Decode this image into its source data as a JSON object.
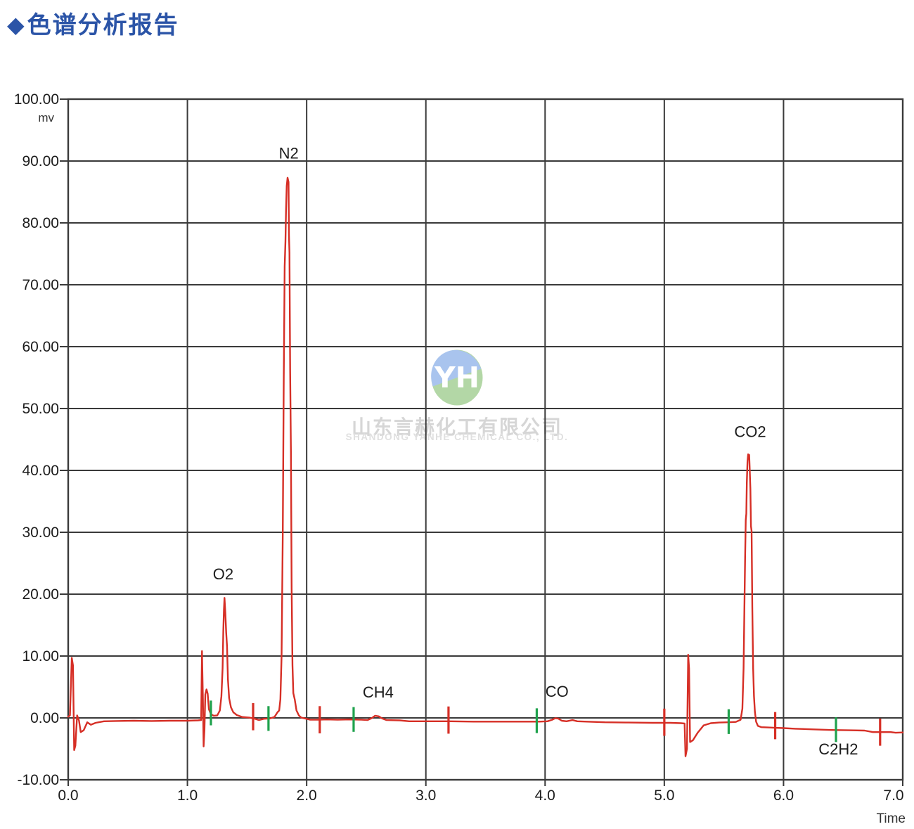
{
  "title": {
    "diamond": "◆",
    "text": "色谱分析报告"
  },
  "watermark": {
    "logo_text": "YH",
    "cn": "山东言赫化工有限公司",
    "en": "SHANDONG YANHE CHEMICAL CO., LTD."
  },
  "colors": {
    "title_blue": "#2b54a7",
    "trace_red": "#d62f26",
    "marker_green": "#1fa24d",
    "marker_red": "#d62f26",
    "grid": "#3a3a3a",
    "text": "#1b1b1b",
    "logo_blue": "#a9c4ee",
    "logo_green": "#b3d7a6"
  },
  "chart_data": {
    "type": "line",
    "title": "",
    "xlabel": "Time",
    "ylabel": "mv",
    "xlim": [
      0,
      7
    ],
    "ylim": [
      -10,
      100
    ],
    "grid": true,
    "x_ticks": [
      {
        "v": 0,
        "label": "0.0"
      },
      {
        "v": 1,
        "label": "1.0"
      },
      {
        "v": 2,
        "label": "2.0"
      },
      {
        "v": 3,
        "label": "3.0"
      },
      {
        "v": 4,
        "label": "4.0"
      },
      {
        "v": 5,
        "label": "5.0"
      },
      {
        "v": 6,
        "label": "6.0"
      },
      {
        "v": 7,
        "label": "7.0"
      }
    ],
    "y_ticks": [
      {
        "v": 100,
        "label": "100.00"
      },
      {
        "v": 90,
        "label": "90.00"
      },
      {
        "v": 80,
        "label": "80.00"
      },
      {
        "v": 70,
        "label": "70.00"
      },
      {
        "v": 60,
        "label": "60.00"
      },
      {
        "v": 50,
        "label": "50.00"
      },
      {
        "v": 40,
        "label": "40.00"
      },
      {
        "v": 30,
        "label": "30.00"
      },
      {
        "v": 20,
        "label": "20.00"
      },
      {
        "v": 10,
        "label": "10.00"
      },
      {
        "v": 0,
        "label": "0.00"
      },
      {
        "v": -10,
        "label": "-10.00"
      }
    ],
    "peaks": [
      {
        "label": "O2",
        "t": 1.3,
        "mv": 23.2
      },
      {
        "label": "N2",
        "t": 1.85,
        "mv": 91.2
      },
      {
        "label": "CH4",
        "t": 2.6,
        "mv": 4.1
      },
      {
        "label": "CO",
        "t": 4.1,
        "mv": 4.2
      },
      {
        "label": "CO2",
        "t": 5.72,
        "mv": 46.2
      },
      {
        "label": "C2H2",
        "t": 6.46,
        "mv": -5.1
      }
    ],
    "peak_start_ticks_green": [
      {
        "t": 1.197,
        "c": 0.8
      },
      {
        "t": 1.68,
        "c": -0.1
      },
      {
        "t": 2.394,
        "c": -0.25
      },
      {
        "t": 3.93,
        "c": -0.45
      },
      {
        "t": 5.54,
        "c": -0.6
      },
      {
        "t": 6.44,
        "c": -1.9
      }
    ],
    "peak_end_ticks_red": [
      {
        "t": 1.551,
        "c": 0.2
      },
      {
        "t": 2.11,
        "c": -0.3
      },
      {
        "t": 3.19,
        "c": -0.35
      },
      {
        "t": 5.0,
        "c": -0.7
      },
      {
        "t": 5.93,
        "c": -1.25
      },
      {
        "t": 6.81,
        "c": -2.3
      }
    ],
    "series": [
      {
        "name": "signal",
        "points": [
          [
            0.0,
            0.2
          ],
          [
            0.015,
            0.4
          ],
          [
            0.03,
            9.7
          ],
          [
            0.04,
            8.5
          ],
          [
            0.05,
            -5.2
          ],
          [
            0.06,
            -4.5
          ],
          [
            0.075,
            0.4
          ],
          [
            0.09,
            -0.4
          ],
          [
            0.105,
            -2.3
          ],
          [
            0.13,
            -2.0
          ],
          [
            0.16,
            -0.7
          ],
          [
            0.19,
            -1.1
          ],
          [
            0.23,
            -0.8
          ],
          [
            0.3,
            -0.55
          ],
          [
            0.4,
            -0.5
          ],
          [
            0.55,
            -0.45
          ],
          [
            0.7,
            -0.5
          ],
          [
            0.85,
            -0.45
          ],
          [
            1.0,
            -0.45
          ],
          [
            1.09,
            -0.4
          ],
          [
            1.115,
            -0.35
          ],
          [
            1.122,
            10.8
          ],
          [
            1.13,
            3.0
          ],
          [
            1.136,
            -4.6
          ],
          [
            1.143,
            -2.0
          ],
          [
            1.15,
            3.8
          ],
          [
            1.16,
            4.6
          ],
          [
            1.17,
            3.9
          ],
          [
            1.18,
            1.4
          ],
          [
            1.197,
            0.6
          ],
          [
            1.22,
            0.35
          ],
          [
            1.25,
            0.4
          ],
          [
            1.272,
            1.2
          ],
          [
            1.285,
            3.5
          ],
          [
            1.295,
            8.0
          ],
          [
            1.301,
            14.0
          ],
          [
            1.306,
            17.5
          ],
          [
            1.311,
            19.4
          ],
          [
            1.318,
            17.0
          ],
          [
            1.325,
            13.8
          ],
          [
            1.332,
            11.6
          ],
          [
            1.34,
            6.2
          ],
          [
            1.35,
            3.2
          ],
          [
            1.365,
            1.7
          ],
          [
            1.385,
            0.9
          ],
          [
            1.415,
            0.45
          ],
          [
            1.46,
            0.15
          ],
          [
            1.52,
            0.05
          ],
          [
            1.56,
            -0.1
          ],
          [
            1.6,
            -0.35
          ],
          [
            1.64,
            -0.15
          ],
          [
            1.69,
            -0.1
          ],
          [
            1.73,
            0.15
          ],
          [
            1.755,
            0.9
          ],
          [
            1.77,
            1.2
          ],
          [
            1.78,
            3.0
          ],
          [
            1.79,
            10.0
          ],
          [
            1.8,
            30.0
          ],
          [
            1.808,
            55.0
          ],
          [
            1.816,
            73.0
          ],
          [
            1.822,
            77.0
          ],
          [
            1.827,
            82.0
          ],
          [
            1.833,
            86.0
          ],
          [
            1.84,
            87.3
          ],
          [
            1.848,
            86.6
          ],
          [
            1.852,
            78.0
          ],
          [
            1.856,
            75.2
          ],
          [
            1.862,
            56.0
          ],
          [
            1.868,
            43.0
          ],
          [
            1.874,
            21.0
          ],
          [
            1.881,
            8.5
          ],
          [
            1.888,
            4.0
          ],
          [
            1.9,
            3.0
          ],
          [
            1.915,
            1.2
          ],
          [
            1.935,
            0.4
          ],
          [
            1.955,
            0.05
          ],
          [
            1.99,
            -0.1
          ],
          [
            2.03,
            -0.3
          ],
          [
            2.1,
            -0.3
          ],
          [
            2.17,
            -0.25
          ],
          [
            2.26,
            -0.3
          ],
          [
            2.36,
            -0.25
          ],
          [
            2.46,
            -0.3
          ],
          [
            2.51,
            -0.35
          ],
          [
            2.545,
            -0.05
          ],
          [
            2.575,
            0.35
          ],
          [
            2.605,
            0.25
          ],
          [
            2.635,
            -0.1
          ],
          [
            2.67,
            -0.35
          ],
          [
            2.78,
            -0.4
          ],
          [
            2.86,
            -0.55
          ],
          [
            3.0,
            -0.55
          ],
          [
            3.2,
            -0.55
          ],
          [
            3.4,
            -0.6
          ],
          [
            3.6,
            -0.6
          ],
          [
            3.8,
            -0.6
          ],
          [
            3.95,
            -0.6
          ],
          [
            4.02,
            -0.55
          ],
          [
            4.06,
            -0.3
          ],
          [
            4.085,
            -0.05
          ],
          [
            4.11,
            -0.1
          ],
          [
            4.14,
            -0.45
          ],
          [
            4.18,
            -0.55
          ],
          [
            4.23,
            -0.35
          ],
          [
            4.27,
            -0.55
          ],
          [
            4.35,
            -0.6
          ],
          [
            4.5,
            -0.7
          ],
          [
            4.7,
            -0.75
          ],
          [
            4.9,
            -0.8
          ],
          [
            5.05,
            -0.8
          ],
          [
            5.14,
            -0.85
          ],
          [
            5.17,
            -0.9
          ],
          [
            5.178,
            -6.2
          ],
          [
            5.19,
            -5.0
          ],
          [
            5.2,
            10.2
          ],
          [
            5.208,
            8.0
          ],
          [
            5.216,
            -3.9
          ],
          [
            5.24,
            -3.6
          ],
          [
            5.28,
            -2.4
          ],
          [
            5.33,
            -1.2
          ],
          [
            5.39,
            -0.85
          ],
          [
            5.46,
            -0.75
          ],
          [
            5.54,
            -0.7
          ],
          [
            5.6,
            -0.65
          ],
          [
            5.64,
            -0.3
          ],
          [
            5.655,
            1.5
          ],
          [
            5.665,
            8.0
          ],
          [
            5.672,
            18.0
          ],
          [
            5.678,
            26.0
          ],
          [
            5.683,
            32.0
          ],
          [
            5.688,
            33.0
          ],
          [
            5.692,
            38.0
          ],
          [
            5.698,
            41.5
          ],
          [
            5.703,
            42.6
          ],
          [
            5.712,
            42.5
          ],
          [
            5.717,
            40.0
          ],
          [
            5.722,
            37.0
          ],
          [
            5.727,
            31.0
          ],
          [
            5.732,
            30.2
          ],
          [
            5.738,
            18.0
          ],
          [
            5.745,
            8.0
          ],
          [
            5.752,
            3.5
          ],
          [
            5.76,
            1.0
          ],
          [
            5.77,
            -0.6
          ],
          [
            5.785,
            -1.3
          ],
          [
            5.815,
            -1.5
          ],
          [
            5.87,
            -1.55
          ],
          [
            5.93,
            -1.6
          ],
          [
            6.0,
            -1.65
          ],
          [
            6.1,
            -1.75
          ],
          [
            6.25,
            -1.85
          ],
          [
            6.4,
            -1.95
          ],
          [
            6.55,
            -2.0
          ],
          [
            6.68,
            -2.05
          ],
          [
            6.75,
            -2.3
          ],
          [
            6.9,
            -2.3
          ],
          [
            6.94,
            -2.4
          ],
          [
            7.0,
            -2.35
          ]
        ]
      }
    ]
  }
}
